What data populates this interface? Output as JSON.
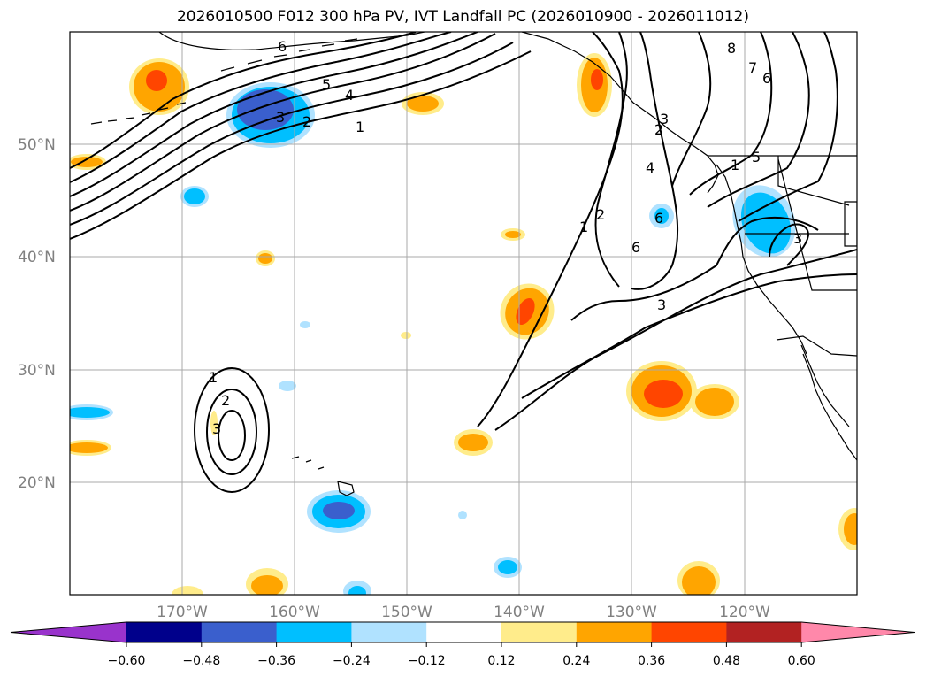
{
  "title": "2026010500 F012 300 hPa PV, IVT Landfall PC (2026010900 - 2026011012)",
  "lat_labels": [
    "50°N",
    "40°N",
    "30°N",
    "20°N"
  ],
  "lon_labels": [
    "170°W",
    "160°W",
    "150°W",
    "140°W",
    "130°W",
    "120°W"
  ],
  "contour_labels": [
    "1",
    "2",
    "3",
    "4",
    "5",
    "6",
    "1",
    "2",
    "3",
    "4",
    "6",
    "1",
    "2",
    "3",
    "8",
    "7",
    "6",
    "5",
    "3",
    "1",
    "2",
    "3",
    "6"
  ],
  "colorbar": {
    "ticks": [
      "−0.60",
      "−0.48",
      "−0.36",
      "−0.24",
      "−0.12",
      "0.12",
      "0.24",
      "0.36",
      "0.48",
      "0.60"
    ],
    "colors": [
      "#9933cc",
      "#00008b",
      "#3a5fcd",
      "#00bfff",
      "#b0e2ff",
      "#ffffff",
      "#ffec8b",
      "#ffa500",
      "#ff4500",
      "#b22222",
      "#ff88aa"
    ]
  },
  "chart_data": {
    "type": "map",
    "projection": "PlateCarree",
    "lon_range": [
      -180,
      -110
    ],
    "lat_range": [
      10,
      60
    ],
    "fields": [
      {
        "name": "300 hPa PV",
        "display": "black contour lines",
        "levels": [
          1,
          2,
          3,
          4,
          5,
          6,
          7,
          8
        ]
      },
      {
        "name": "IVT Landfall PC",
        "display": "filled contours",
        "levels": [
          -0.6,
          -0.48,
          -0.36,
          -0.24,
          -0.12,
          0.12,
          0.24,
          0.36,
          0.48,
          0.6
        ]
      }
    ],
    "gridlines": true
  }
}
